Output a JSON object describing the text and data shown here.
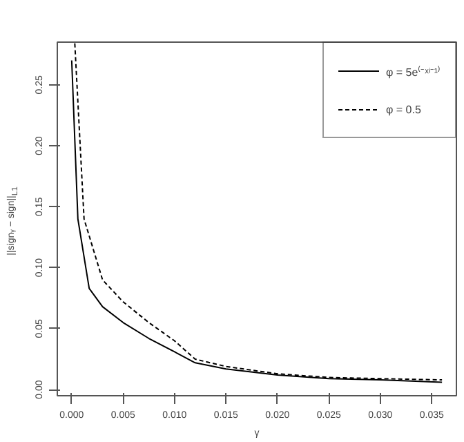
{
  "chart_data": {
    "type": "line",
    "xlabel": "γ",
    "ylabel": "||signᵧ − sign||$_{L1}$",
    "xlim": [
      -0.0014,
      0.0374
    ],
    "ylim": [
      -0.005,
      0.285
    ],
    "xticks": [
      {
        "value": 0,
        "label": "0.000"
      },
      {
        "value": 0.005,
        "label": "0.005"
      },
      {
        "value": 0.01,
        "label": "0.010"
      },
      {
        "value": 0.015,
        "label": "0.015"
      },
      {
        "value": 0.02,
        "label": "0.020"
      },
      {
        "value": 0.025,
        "label": "0.025"
      },
      {
        "value": 0.03,
        "label": "0.030"
      },
      {
        "value": 0.035,
        "label": "0.035"
      }
    ],
    "yticks": [
      {
        "value": 0,
        "label": "0.00"
      },
      {
        "value": 0.05,
        "label": "0.05"
      },
      {
        "value": 0.1,
        "label": "0.10"
      },
      {
        "value": 0.15,
        "label": "0.15"
      },
      {
        "value": 0.2,
        "label": "0.20"
      },
      {
        "value": 0.25,
        "label": "0.25"
      }
    ],
    "grid": false,
    "legend": "top right",
    "series": [
      {
        "name": "φ = 5e⁽⁻ˣⁱ⁻¹⁾",
        "color": "#000000",
        "line_style": "solid",
        "x": [
          0,
          0.0006,
          0.0017,
          0.003,
          0.005,
          0.0075,
          0.01,
          0.012,
          0.015,
          0.02,
          0.025,
          0.03,
          0.036
        ],
        "values": [
          0.27,
          0.14,
          0.083,
          0.068,
          0.055,
          0.042,
          0.031,
          0.022,
          0.017,
          0.012,
          0.009,
          0.008,
          0.006
        ]
      },
      {
        "name": "φ = 0.5",
        "color": "#000000",
        "line_style": "dashed",
        "x": [
          0.0003,
          0.0012,
          0.003,
          0.005,
          0.0075,
          0.01,
          0.012,
          0.015,
          0.02,
          0.025,
          0.03,
          0.036
        ],
        "values": [
          0.284,
          0.14,
          0.09,
          0.072,
          0.055,
          0.04,
          0.025,
          0.019,
          0.013,
          0.01,
          0.009,
          0.008
        ]
      }
    ]
  }
}
